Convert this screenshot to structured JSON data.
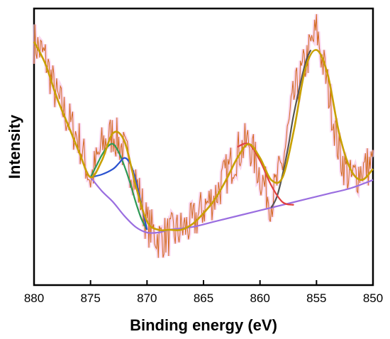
{
  "chart_data": {
    "type": "line",
    "title": "",
    "xlabel": "Binding energy (eV)",
    "ylabel": "Intensity",
    "xlim": [
      880,
      850
    ],
    "x_reversed": true,
    "xticks": [
      880,
      875,
      870,
      865,
      860,
      855,
      850
    ],
    "xtick_labels": [
      "880",
      "875",
      "870",
      "865",
      "860",
      "855",
      "850"
    ],
    "yticks": [],
    "ylim": [
      0,
      100
    ],
    "grid": false,
    "legend": "none",
    "series": [
      {
        "color": "#d2691e",
        "style": "raw-noisy",
        "x": [
          880,
          879,
          878,
          877,
          876,
          875,
          874,
          873,
          872,
          871,
          870,
          869,
          868,
          867,
          866,
          865,
          864,
          863,
          862,
          861,
          860,
          859,
          858,
          857,
          856,
          855,
          854,
          853,
          852,
          851,
          850
        ],
        "y": [
          88,
          82,
          68,
          60,
          52,
          38,
          50,
          55,
          48,
          38,
          22,
          17,
          18,
          20,
          22,
          28,
          32,
          40,
          48,
          52,
          40,
          30,
          44,
          68,
          80,
          92,
          72,
          48,
          38,
          42,
          44
        ]
      },
      {
        "color": "#c8a000",
        "style": "envelope",
        "x": [
          880,
          879,
          878,
          877,
          876,
          875,
          874,
          873,
          872,
          871,
          870,
          869,
          868,
          867,
          866,
          865,
          864,
          863,
          862,
          861,
          860,
          859,
          858,
          857,
          856,
          855,
          854,
          853,
          852,
          851,
          850
        ],
        "y": [
          88,
          80,
          68,
          58,
          48,
          39,
          45,
          55,
          52,
          36,
          23,
          20,
          20,
          20,
          22,
          26,
          31,
          38,
          46,
          51,
          46,
          38,
          39,
          56,
          78,
          85,
          76,
          55,
          42,
          38,
          42
        ]
      },
      {
        "color": "#9a6ee0",
        "style": "background",
        "x": [
          875,
          874,
          873,
          872,
          871,
          870,
          869,
          868,
          866,
          864,
          862,
          860,
          858,
          856,
          854,
          852,
          850
        ],
        "y": [
          39,
          34,
          30,
          25,
          21,
          19,
          19,
          20,
          21,
          23,
          25,
          27,
          29,
          31,
          33,
          35,
          38
        ]
      },
      {
        "color": "#2e9a55",
        "style": "fit-peak",
        "x": [
          875,
          874.5,
          874,
          873.5,
          873,
          872.5,
          872,
          871.5,
          871,
          870.5,
          870
        ],
        "y": [
          39,
          43,
          47,
          50,
          51,
          48,
          43,
          37,
          30,
          24,
          20
        ]
      },
      {
        "color": "#2a52d0",
        "style": "fit-peak",
        "x": [
          875,
          874,
          873,
          872.5,
          872,
          871.5,
          871,
          870.5,
          870
        ],
        "y": [
          39,
          40,
          42,
          44,
          46,
          44,
          38,
          29,
          20
        ]
      },
      {
        "color": "#555555",
        "style": "fit-peak",
        "x": [
          859,
          858.5,
          858,
          857.5,
          857,
          856,
          855.5
        ],
        "y": [
          28,
          32,
          40,
          50,
          62,
          80,
          85
        ]
      },
      {
        "color": "#e04040",
        "style": "fit-peak",
        "x": [
          862,
          861,
          860,
          859,
          858,
          857
        ],
        "y": [
          50,
          51,
          45,
          36,
          30,
          29
        ]
      }
    ]
  }
}
